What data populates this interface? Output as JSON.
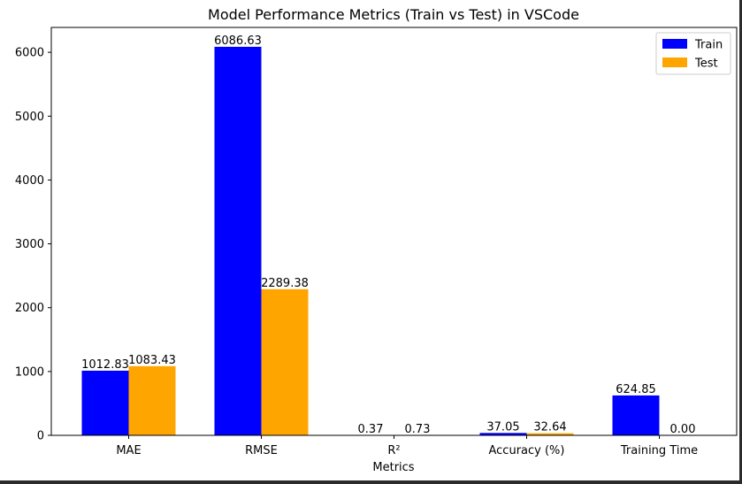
{
  "chart_data": {
    "type": "bar",
    "title": "Model Performance Metrics (Train vs Test) in VSCode",
    "xlabel": "Metrics",
    "ylabel": "",
    "categories": [
      "MAE",
      "RMSE",
      "R²",
      "Accuracy (%)",
      "Training Time"
    ],
    "series": [
      {
        "name": "Train",
        "color": "#0000ff",
        "values": [
          1012.83,
          6086.63,
          0.37,
          37.05,
          624.85
        ],
        "labels": [
          "1012.83",
          "6086.63",
          "0.37",
          "37.05",
          "624.85"
        ]
      },
      {
        "name": "Test",
        "color": "#ffa500",
        "values": [
          1083.43,
          2289.38,
          0.73,
          32.64,
          0.0
        ],
        "labels": [
          "1083.43",
          "2289.38",
          "0.73",
          "32.64",
          "0.00"
        ]
      }
    ],
    "ylim": [
      0,
      6390
    ],
    "yticks": [
      0,
      1000,
      2000,
      3000,
      4000,
      5000,
      6000
    ],
    "grid": false,
    "legend_position": "top-right"
  }
}
